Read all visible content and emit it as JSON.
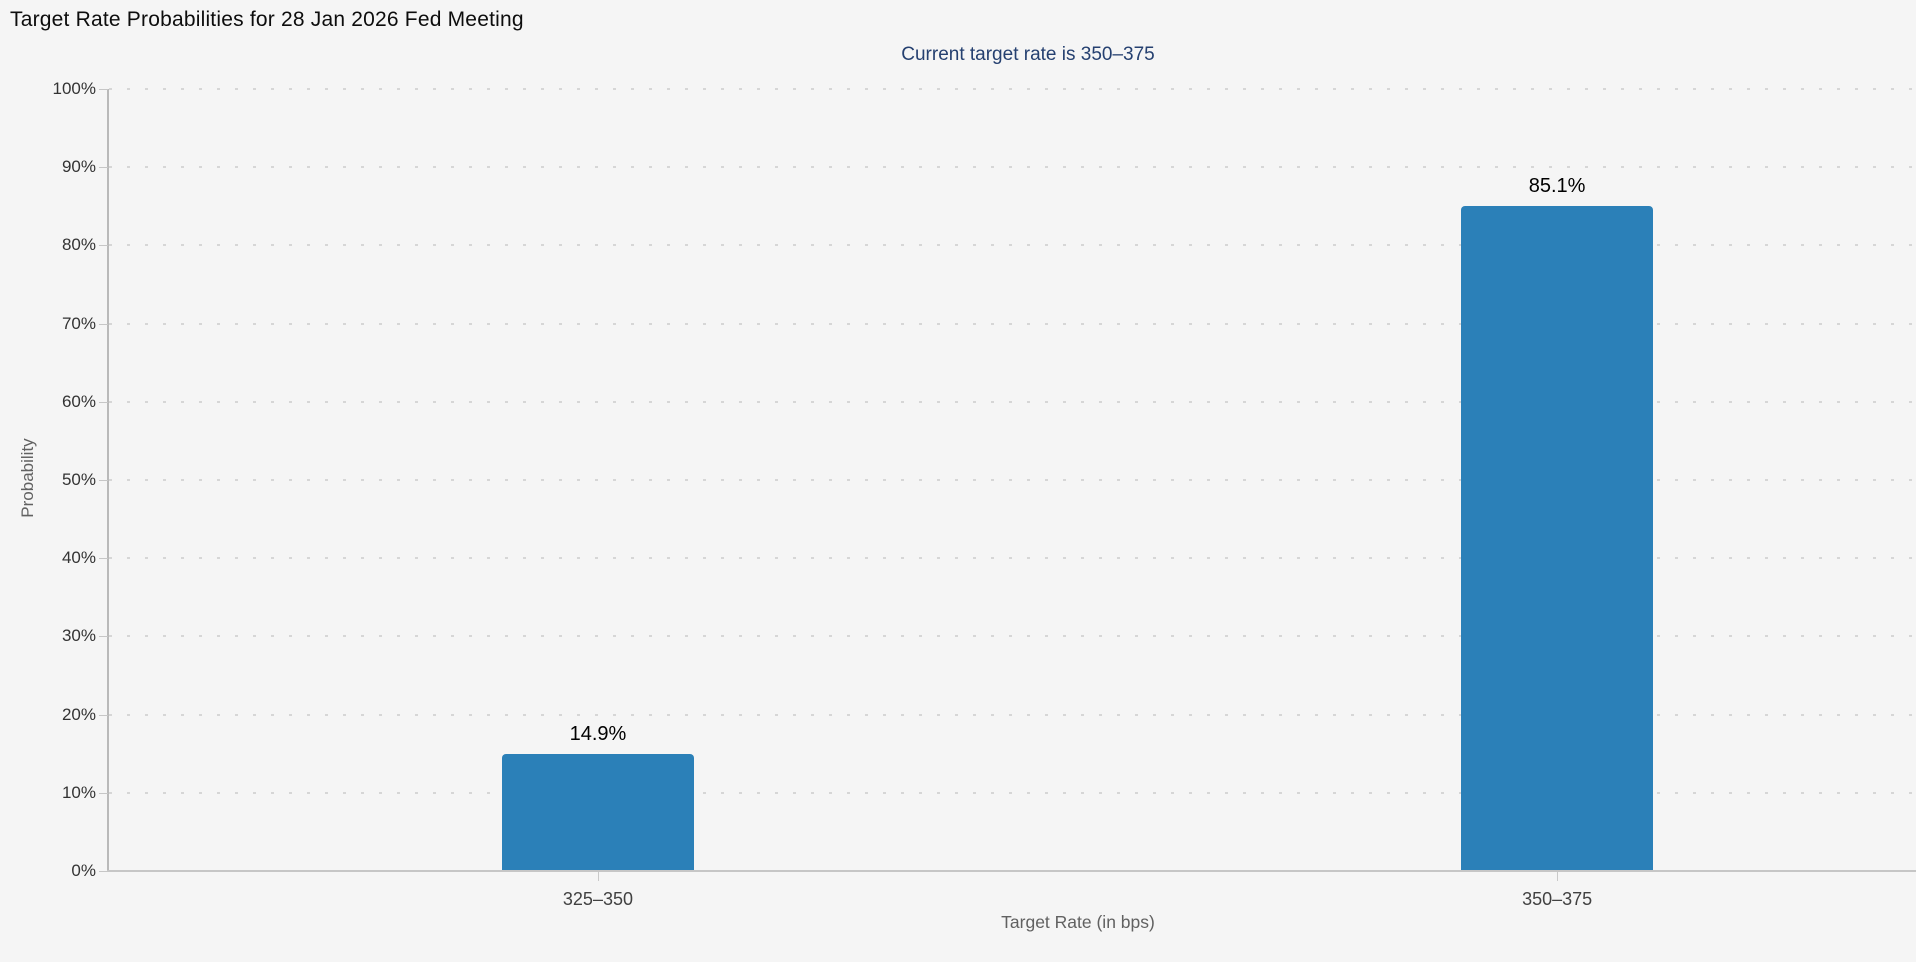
{
  "chart_data": {
    "type": "bar",
    "title": "Target Rate Probabilities for 28 Jan 2026 Fed Meeting",
    "subtitle": "Current target rate is 350–375",
    "categories": [
      "325–350",
      "350–375"
    ],
    "values": [
      14.9,
      85.1
    ],
    "value_labels": [
      "14.9%",
      "85.1%"
    ],
    "xlabel": "Target Rate (in bps)",
    "ylabel": "Probability",
    "ylim": [
      0,
      100
    ],
    "ytick_step": 10,
    "ytick_suffix": "%",
    "legend": "none",
    "grid": "horizontal-dotted",
    "colors": {
      "bar": "#2b80b8",
      "subtitle": "#254070",
      "axis": "#b9b9b9",
      "grid_dot": "#d6d6d6",
      "background": "#f5f5f5",
      "tick_label": "#333333",
      "axis_title": "#616161"
    }
  }
}
